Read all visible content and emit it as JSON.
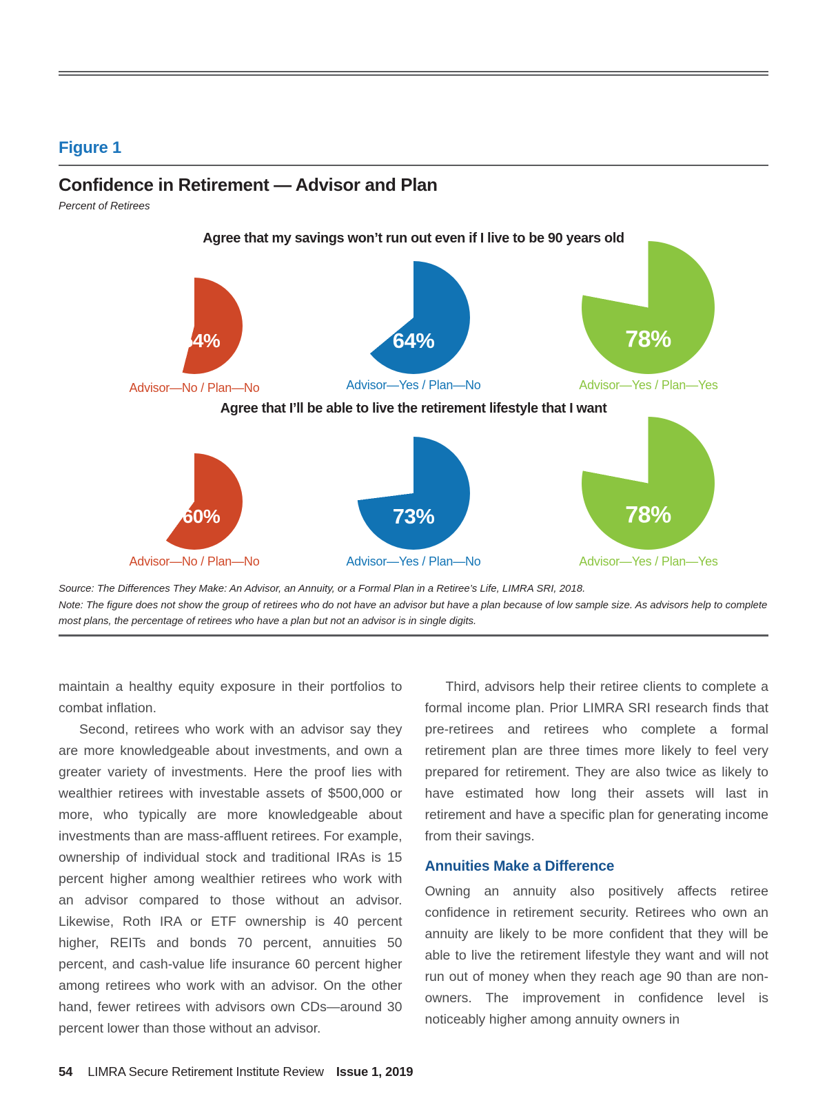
{
  "colors": {
    "rule": "#58595b",
    "blue-bright": "#1b74bb",
    "blue-dark": "#17538f",
    "pie-red": "#cf4727",
    "pie-blue": "#1173b4",
    "pie-green": "#8bc540"
  },
  "figure": {
    "label": "Figure 1",
    "title": "Confidence in Retirement — Advisor and Plan",
    "subtitle": "Percent of Retirees",
    "source": "Source: The Differences They Make: An Advisor, an Annuity, or a Formal Plan in a Retiree’s Life, LIMRA SRI, 2018.",
    "note": "Note: The figure does not show the group of retirees who do not have an advisor but have a plan because of low sample size. As advisors help to complete most plans, the percentage of retirees who have a plan but not an advisor is in single digits."
  },
  "chart_data": {
    "type": "pie",
    "title": "Confidence in Retirement — Advisor and Plan",
    "units": "Percent of Retirees",
    "groups": [
      {
        "title": "Agree that my savings won’t run out even if I live to be 90 years old",
        "slices": [
          {
            "label": "Advisor—No / Plan—No",
            "value": 54,
            "color": "#cf4727"
          },
          {
            "label": "Advisor—Yes / Plan—No",
            "value": 64,
            "color": "#1173b4"
          },
          {
            "label": "Advisor—Yes / Plan—Yes",
            "value": 78,
            "color": "#8bc540"
          }
        ]
      },
      {
        "title": "Agree that I’ll be able to live the retirement lifestyle that I want",
        "slices": [
          {
            "label": "Advisor—No / Plan—No",
            "value": 60,
            "color": "#cf4727"
          },
          {
            "label": "Advisor—Yes / Plan—No",
            "value": 73,
            "color": "#1173b4"
          },
          {
            "label": "Advisor—Yes / Plan—Yes",
            "value": 78,
            "color": "#8bc540"
          }
        ]
      }
    ]
  },
  "article": {
    "left": {
      "para1": "maintain a healthy equity exposure in their portfolios to combat inflation.",
      "para2": "Second, retirees who work with an advisor say they are more knowledgeable about investments, and own a greater variety of investments. Here the proof lies with wealthier retirees with investable assets of $500,000 or more, who typically are more knowledgeable about investments than are mass-affluent retirees. For example, ownership of individual stock and traditional IRAs is 15 percent higher among wealthier retirees who work with an advisor compared to those without an advisor. Likewise, Roth IRA or ETF ownership is 40 percent higher, REITs and bonds 70 percent, annuities 50 percent, and cash-value life insurance 60 percent higher among retirees who work with an advisor. On the other hand, fewer retirees with advisors own CDs—around 30 percent lower than those without an advisor."
    },
    "right": {
      "para1": "Third, advisors help their retiree clients to complete a formal income plan. Prior LIMRA SRI research finds that pre-retirees and retirees who complete a formal retirement plan are three times more likely to feel very prepared for retirement. They are also twice as likely to have estimated how long their assets will last in retirement and have a specific plan for generating income from their savings.",
      "heading": "Annuities Make a Difference",
      "para2": "Owning an annuity also positively affects retiree confidence in retirement security. Retirees who own an annuity are likely to be more confident that they will be able to live the retirement lifestyle they want and will not run out of money when they reach age 90 than are non-owners. The improvement in confidence level is noticeably higher among annuity owners in"
    }
  },
  "footer": {
    "page_number": "54",
    "journal": "LIMRA Secure Retirement Institute Review",
    "issue": "Issue 1, 2019"
  }
}
